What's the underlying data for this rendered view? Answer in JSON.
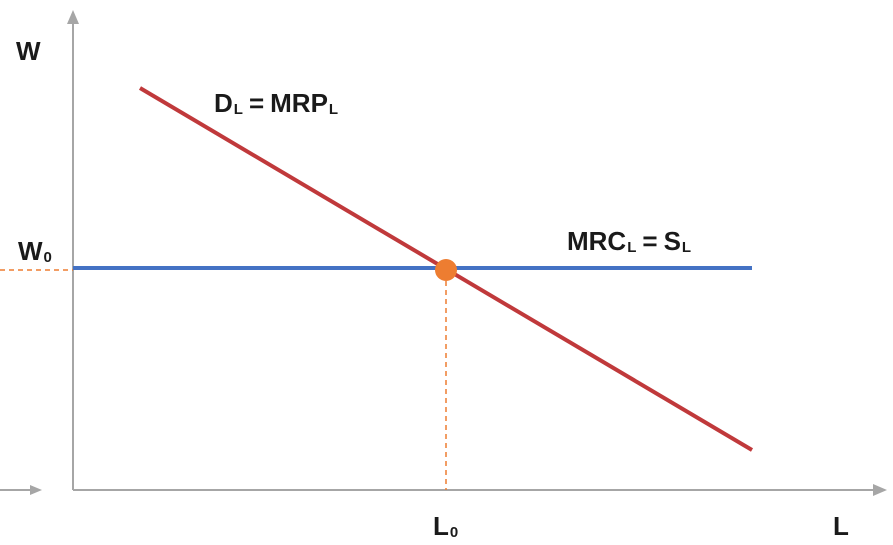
{
  "axes": {
    "y_label": "W",
    "x_label": "L",
    "w0": {
      "main": "W",
      "sub": "0"
    },
    "l0": {
      "main": "L",
      "sub": "0"
    }
  },
  "curves": {
    "demand": {
      "lhs_main": "D",
      "lhs_sub": "L",
      "eq": "=",
      "rhs_main": "MRP",
      "rhs_sub": "L",
      "color": "#c0393b"
    },
    "supply": {
      "lhs_main": "MRC",
      "lhs_sub": "L",
      "eq": "=",
      "rhs_main": "S",
      "rhs_sub": "L",
      "color": "#4472c4"
    }
  },
  "colors": {
    "axis": "#a6a6a6",
    "guide": "#ed7d31",
    "equilibrium_point": "#ed7d31"
  }
}
